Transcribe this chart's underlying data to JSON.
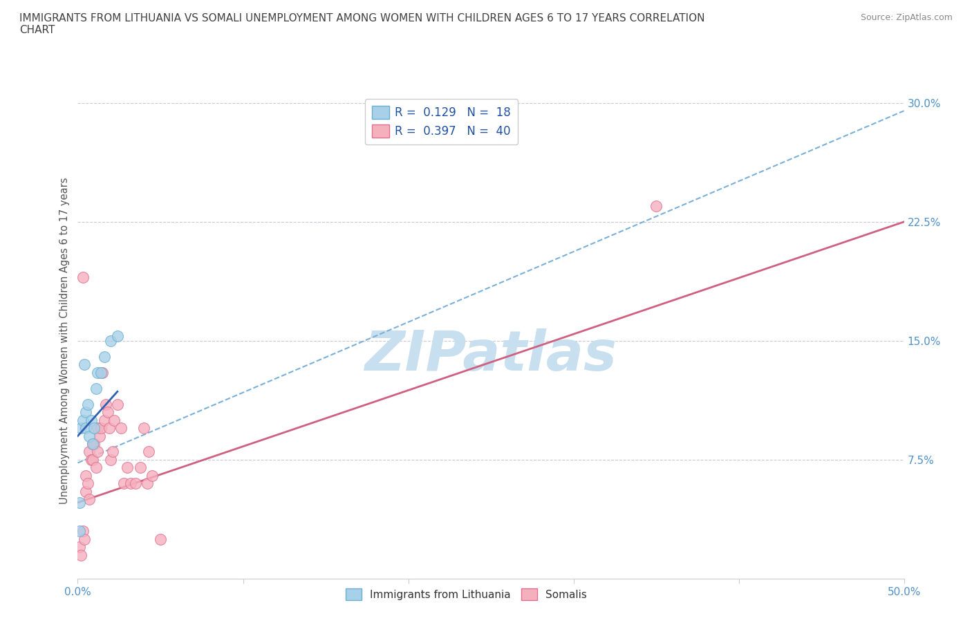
{
  "title": "IMMIGRANTS FROM LITHUANIA VS SOMALI UNEMPLOYMENT AMONG WOMEN WITH CHILDREN AGES 6 TO 17 YEARS CORRELATION\nCHART",
  "source": "Source: ZipAtlas.com",
  "ylabel": "Unemployment Among Women with Children Ages 6 to 17 years",
  "xlim": [
    0,
    0.5
  ],
  "ylim": [
    0,
    0.3
  ],
  "ytick_positions": [
    0.075,
    0.15,
    0.225,
    0.3
  ],
  "ytick_labels": [
    "7.5%",
    "15.0%",
    "22.5%",
    "30.0%"
  ],
  "lithuania_color": "#a8d0e8",
  "somali_color": "#f5b0be",
  "lithuania_edge": "#6aafd0",
  "somali_edge": "#e07090",
  "trend_lithuania_color": "#7ab0d8",
  "trend_somali_color": "#d06080",
  "R_lithuania": 0.129,
  "N_lithuania": 18,
  "R_somali": 0.397,
  "N_somali": 40,
  "lithuania_x": [
    0.001,
    0.001,
    0.002,
    0.003,
    0.004,
    0.005,
    0.005,
    0.006,
    0.007,
    0.008,
    0.009,
    0.01,
    0.011,
    0.012,
    0.014,
    0.016,
    0.02,
    0.024
  ],
  "lithuania_y": [
    0.03,
    0.048,
    0.095,
    0.1,
    0.135,
    0.095,
    0.105,
    0.11,
    0.09,
    0.1,
    0.085,
    0.095,
    0.12,
    0.13,
    0.13,
    0.14,
    0.15,
    0.153
  ],
  "somali_x": [
    0.001,
    0.002,
    0.003,
    0.004,
    0.005,
    0.005,
    0.006,
    0.007,
    0.007,
    0.008,
    0.009,
    0.009,
    0.01,
    0.011,
    0.012,
    0.012,
    0.013,
    0.014,
    0.015,
    0.016,
    0.017,
    0.018,
    0.019,
    0.02,
    0.021,
    0.022,
    0.024,
    0.026,
    0.028,
    0.03,
    0.032,
    0.035,
    0.038,
    0.04,
    0.042,
    0.043,
    0.045,
    0.05,
    0.35,
    0.003
  ],
  "somali_y": [
    0.02,
    0.015,
    0.03,
    0.025,
    0.055,
    0.065,
    0.06,
    0.08,
    0.05,
    0.075,
    0.075,
    0.085,
    0.085,
    0.07,
    0.095,
    0.08,
    0.09,
    0.095,
    0.13,
    0.1,
    0.11,
    0.105,
    0.095,
    0.075,
    0.08,
    0.1,
    0.11,
    0.095,
    0.06,
    0.07,
    0.06,
    0.06,
    0.07,
    0.095,
    0.06,
    0.08,
    0.065,
    0.025,
    0.235,
    0.19
  ],
  "trend_lith_x0": 0.0,
  "trend_lith_y0": 0.073,
  "trend_lith_x1": 0.5,
  "trend_lith_y1": 0.295,
  "trend_soma_x0": 0.0,
  "trend_soma_y0": 0.048,
  "trend_soma_x1": 0.5,
  "trend_soma_y1": 0.225,
  "lith_line_x0": 0.0,
  "lith_line_y0": 0.09,
  "lith_line_x1": 0.024,
  "lith_line_y1": 0.118,
  "watermark": "ZIPatlas",
  "watermark_color": "#c8dff0",
  "background_color": "#ffffff",
  "grid_color": "#c8c8d8",
  "title_color": "#404040",
  "axis_label_color": "#555555",
  "tick_color": "#5090c8",
  "legend_R_color": "#2050a0"
}
